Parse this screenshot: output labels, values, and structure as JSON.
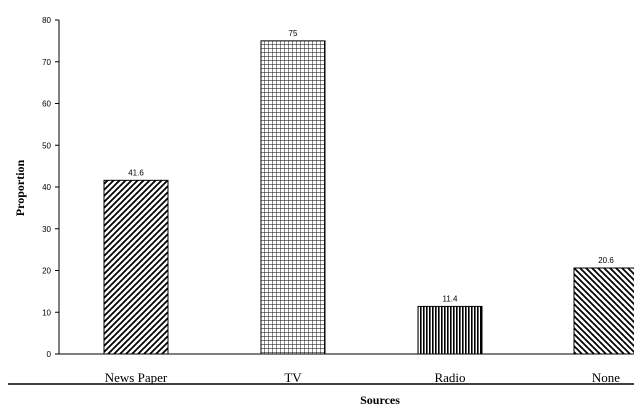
{
  "chart_data": {
    "type": "bar",
    "categories": [
      "News Paper",
      "TV",
      "Radio",
      "None"
    ],
    "values": [
      41.6,
      75,
      11.4,
      20.6
    ],
    "value_labels": [
      "41.6",
      "75",
      "11.4",
      "20.6"
    ],
    "xlabel": "Sources",
    "ylabel": "Proportion",
    "ylim": [
      0,
      80
    ],
    "yticks": [
      "0",
      "10",
      "20",
      "30",
      "40",
      "50",
      "60",
      "70",
      "80"
    ],
    "grid": false,
    "legend": "none",
    "bar_fills": [
      "diagonal-hatch",
      "grid-hatch",
      "vertical-stripes",
      "diagonal-hatch-reverse"
    ]
  }
}
